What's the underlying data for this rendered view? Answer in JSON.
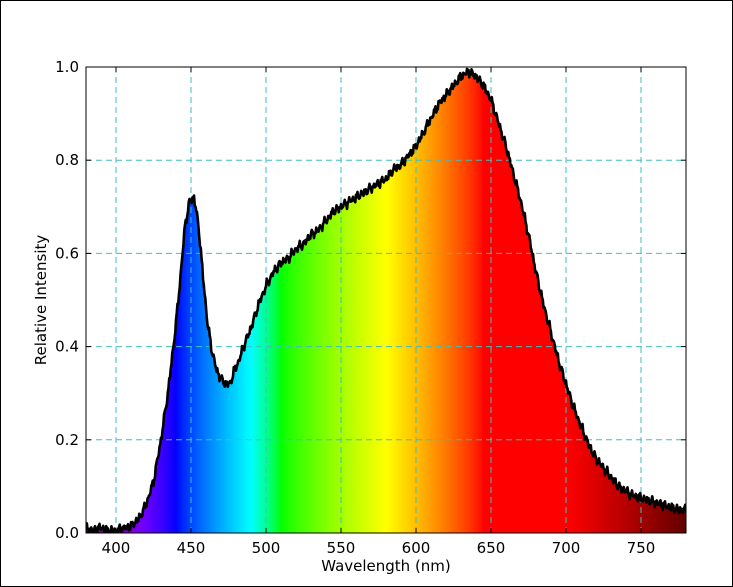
{
  "chart_data": {
    "type": "area",
    "title": "",
    "xlabel": "Wavelength (nm)",
    "ylabel": "Relative Intensity",
    "xlim": [
      380,
      780
    ],
    "ylim": [
      0.0,
      1.0
    ],
    "xticks": [
      400,
      450,
      500,
      550,
      600,
      650,
      700,
      750
    ],
    "xtick_labels": [
      "400",
      "450",
      "500",
      "550",
      "600",
      "650",
      "700",
      "750"
    ],
    "yticks": [
      0.0,
      0.2,
      0.4,
      0.6,
      0.8,
      1.0
    ],
    "ytick_labels": [
      "0.0",
      "0.2",
      "0.4",
      "0.6",
      "0.8",
      "1.0"
    ],
    "grid": true,
    "fill": "visible-spectrum colors under the curve",
    "series": [
      {
        "x": [
          380,
          385,
          390,
          395,
          400,
          405,
          410,
          415,
          420,
          425,
          430,
          435,
          440,
          443,
          446,
          449,
          452,
          455,
          458,
          461,
          464,
          467,
          470,
          473,
          476,
          479,
          482,
          485,
          490,
          495,
          500,
          505,
          510,
          515,
          520,
          525,
          530,
          535,
          540,
          545,
          550,
          555,
          560,
          565,
          570,
          575,
          580,
          585,
          590,
          595,
          600,
          605,
          610,
          615,
          620,
          625,
          630,
          635,
          640,
          645,
          650,
          655,
          660,
          665,
          670,
          675,
          680,
          685,
          690,
          695,
          700,
          705,
          710,
          715,
          720,
          725,
          730,
          735,
          740,
          745,
          750,
          755,
          760,
          765,
          770,
          775,
          780
        ],
        "values": [
          0.01,
          0.005,
          0.012,
          0.004,
          0.005,
          0.01,
          0.015,
          0.03,
          0.06,
          0.11,
          0.2,
          0.31,
          0.45,
          0.55,
          0.66,
          0.71,
          0.72,
          0.66,
          0.55,
          0.45,
          0.39,
          0.35,
          0.33,
          0.32,
          0.32,
          0.35,
          0.37,
          0.4,
          0.44,
          0.49,
          0.53,
          0.56,
          0.58,
          0.59,
          0.61,
          0.62,
          0.64,
          0.65,
          0.67,
          0.69,
          0.7,
          0.71,
          0.72,
          0.73,
          0.74,
          0.75,
          0.76,
          0.78,
          0.79,
          0.81,
          0.83,
          0.86,
          0.89,
          0.92,
          0.94,
          0.96,
          0.98,
          0.99,
          0.98,
          0.96,
          0.93,
          0.88,
          0.83,
          0.77,
          0.71,
          0.64,
          0.56,
          0.49,
          0.43,
          0.37,
          0.32,
          0.27,
          0.23,
          0.19,
          0.16,
          0.14,
          0.12,
          0.1,
          0.09,
          0.08,
          0.075,
          0.07,
          0.065,
          0.06,
          0.055,
          0.05,
          0.05
        ]
      }
    ]
  }
}
